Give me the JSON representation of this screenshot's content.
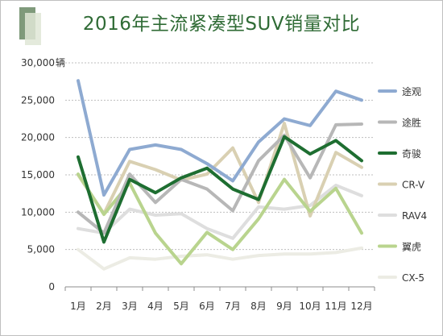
{
  "chart_data": {
    "type": "line",
    "title": "2016年主流紧凑型SUV销量对比",
    "ylabel_unit": "辆",
    "ylim": [
      0,
      30000
    ],
    "yticks": [
      "0",
      "5,000",
      "10,000",
      "15,000",
      "20,000",
      "25,000",
      "30,000"
    ],
    "categories": [
      "1月",
      "2月",
      "3月",
      "4月",
      "5月",
      "6月",
      "7月",
      "8月",
      "9月",
      "10月",
      "11月",
      "12月"
    ],
    "legend_position": "right",
    "grid": "horizontal-dotted",
    "series": [
      {
        "name": "途观",
        "color": "#8eaad1",
        "values": [
          27600,
          12300,
          18400,
          19000,
          18400,
          16500,
          14200,
          19400,
          22500,
          21600,
          26200,
          25000
        ]
      },
      {
        "name": "途胜",
        "color": "#b7b7b7",
        "values": [
          10000,
          7200,
          15100,
          11300,
          14400,
          13100,
          10200,
          16900,
          20300,
          14600,
          21700,
          21800
        ]
      },
      {
        "name": "奇骏",
        "color": "#1e6e31",
        "values": [
          17400,
          6000,
          14400,
          12600,
          14600,
          15900,
          13100,
          11700,
          20100,
          17800,
          19600,
          16900
        ]
      },
      {
        "name": "CR-V",
        "color": "#d9d0b2",
        "values": [
          15000,
          9800,
          16800,
          15700,
          14300,
          15100,
          18600,
          11300,
          21900,
          9500,
          18000,
          16000
        ]
      },
      {
        "name": "RAV4",
        "color": "#dedede",
        "values": [
          7800,
          7200,
          10400,
          9600,
          9800,
          7800,
          6500,
          10700,
          10400,
          10900,
          13600,
          12200
        ]
      },
      {
        "name": "翼虎",
        "color": "#b9d48e",
        "values": [
          15100,
          9700,
          13900,
          7200,
          3100,
          7300,
          5000,
          9100,
          14400,
          10100,
          13200,
          7200
        ]
      },
      {
        "name": "CX-5",
        "color": "#ecece4",
        "values": [
          5000,
          2400,
          3900,
          3700,
          4100,
          4300,
          3700,
          4200,
          4400,
          4400,
          4600,
          5200
        ]
      }
    ]
  }
}
